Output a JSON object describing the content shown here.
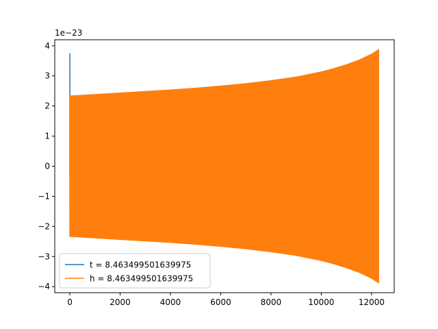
{
  "chart_data": {
    "type": "line",
    "title": "",
    "xlabel": "",
    "ylabel": "",
    "y_offset_label": "1e−23",
    "xlim": [
      -600,
      12900
    ],
    "ylim": [
      -4.2,
      4.2
    ],
    "x_ticks": [
      0,
      2000,
      4000,
      6000,
      8000,
      10000,
      12000
    ],
    "x_tick_labels": [
      "0",
      "2000",
      "4000",
      "6000",
      "8000",
      "10000",
      "12000"
    ],
    "y_ticks": [
      4,
      3,
      2,
      1,
      0,
      -1,
      -2,
      -3,
      -4
    ],
    "y_tick_labels": [
      "4",
      "3",
      "2",
      "1",
      "0",
      "−1",
      "−2",
      "−3",
      "−4"
    ],
    "grid": false,
    "legend_position": "lower-left",
    "series": [
      {
        "name": "t = 8.463499501639975",
        "color": "#1f77b4",
        "points": [
          [
            0,
            -0.35
          ],
          [
            0,
            3.75
          ],
          [
            5,
            -1.7
          ],
          [
            10,
            2.3
          ],
          [
            20,
            -2.3
          ],
          [
            12280,
            3.85
          ],
          [
            12280,
            -1.7
          ]
        ]
      },
      {
        "name": "h = 8.463499501639975",
        "color": "#ff7f0e",
        "envelope": {
          "x": [
            0,
            1000,
            2000,
            3000,
            4000,
            5000,
            6000,
            7000,
            8000,
            9000,
            10000,
            10500,
            11000,
            11500,
            12000,
            12280
          ],
          "upper": [
            2.33,
            2.38,
            2.43,
            2.48,
            2.53,
            2.59,
            2.66,
            2.74,
            2.84,
            2.96,
            3.13,
            3.24,
            3.37,
            3.52,
            3.72,
            3.87
          ],
          "lower": [
            -2.33,
            -2.38,
            -2.43,
            -2.48,
            -2.53,
            -2.59,
            -2.66,
            -2.74,
            -2.84,
            -2.96,
            -3.13,
            -3.24,
            -3.37,
            -3.52,
            -3.72,
            -3.87
          ]
        }
      }
    ]
  }
}
